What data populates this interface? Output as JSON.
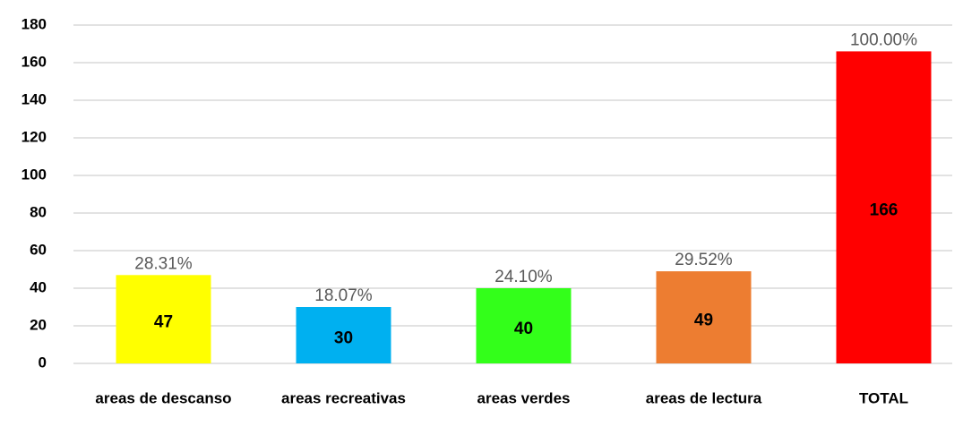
{
  "chart_data": {
    "type": "bar",
    "categories": [
      "areas de descanso",
      "areas recreativas",
      "areas verdes",
      "areas de lectura",
      "TOTAL"
    ],
    "values": [
      47,
      30,
      40,
      49,
      166
    ],
    "colors": [
      "#ffff00",
      "#00b0f0",
      "#33ff1a",
      "#ed7d31",
      "#ff0000"
    ],
    "percent_labels": [
      "28.31%",
      "18.07%",
      "24.10%",
      "29.52%",
      "100.00%"
    ],
    "ylim": [
      0,
      180
    ],
    "yticks": [
      0,
      20,
      40,
      60,
      80,
      100,
      120,
      140,
      160,
      180
    ],
    "grid": true
  }
}
